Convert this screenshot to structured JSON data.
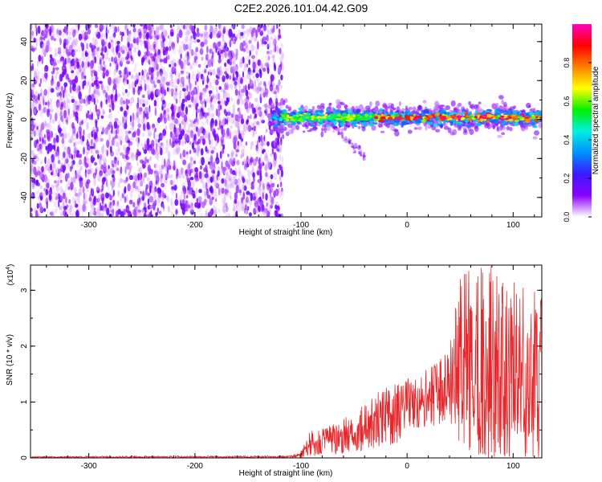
{
  "title": "C2E2.2026.101.04.42.G09",
  "colors": {
    "snr_line": "#e8272b",
    "text": "#000000",
    "axis": "#000000"
  },
  "chart_data": [
    {
      "type": "heatmap",
      "name": "spectrogram",
      "xlabel": "Height of straight line (km)",
      "ylabel": "Frequency (Hz)",
      "xlim": [
        -355,
        127
      ],
      "ylim": [
        -50,
        49
      ],
      "xticks": [
        -300,
        -200,
        -100,
        0,
        100
      ],
      "yticks": [
        -40,
        -20,
        0,
        20,
        40
      ],
      "noise_region_x": [
        -355,
        -117
      ],
      "signal_region_x": [
        -130,
        127
      ],
      "signal_center_freq_hz": 1,
      "colorbar": {
        "label": "Normalized spectral amplitude",
        "range": [
          0,
          1
        ],
        "ticks": [
          "0.0",
          "0.2",
          "0.4",
          "0.6",
          "0.8"
        ],
        "colormap": [
          "#ffffff",
          "#8a00ff",
          "#3b1aff",
          "#0090ff",
          "#00f0e0",
          "#00f000",
          "#ffff00",
          "#ff8000",
          "#ff0000",
          "#ff00c0"
        ]
      }
    },
    {
      "type": "line",
      "name": "snr",
      "xlabel": "Height of straight line (km)",
      "ylabel": "SNR (10 * v/v)",
      "y_multiplier_label": "(x10",
      "y_multiplier_exp": "4",
      "y_multiplier_close": ")",
      "xlim": [
        -355,
        127
      ],
      "ylim": [
        0,
        3.45
      ],
      "xticks": [
        -300,
        -200,
        -100,
        0,
        100
      ],
      "yticks": [
        0,
        1,
        2,
        3
      ],
      "envelope": [
        {
          "x": -355,
          "low": 0.0,
          "high": 0.03
        },
        {
          "x": -110,
          "low": 0.0,
          "high": 0.04
        },
        {
          "x": -100,
          "low": 0.0,
          "high": 0.12
        },
        {
          "x": -90,
          "low": 0.02,
          "high": 0.55
        },
        {
          "x": -70,
          "low": 0.05,
          "high": 0.6
        },
        {
          "x": -50,
          "low": 0.1,
          "high": 0.8
        },
        {
          "x": -30,
          "low": 0.15,
          "high": 1.15
        },
        {
          "x": -10,
          "low": 0.25,
          "high": 1.35
        },
        {
          "x": 10,
          "low": 0.5,
          "high": 1.5
        },
        {
          "x": 30,
          "low": 0.6,
          "high": 1.75
        },
        {
          "x": 40,
          "low": 0.7,
          "high": 2.0
        },
        {
          "x": 50,
          "low": 0.0,
          "high": 3.45
        },
        {
          "x": 80,
          "low": 0.0,
          "high": 3.45
        },
        {
          "x": 100,
          "low": 0.0,
          "high": 3.2
        },
        {
          "x": 127,
          "low": 0.0,
          "high": 3.0
        }
      ]
    }
  ]
}
